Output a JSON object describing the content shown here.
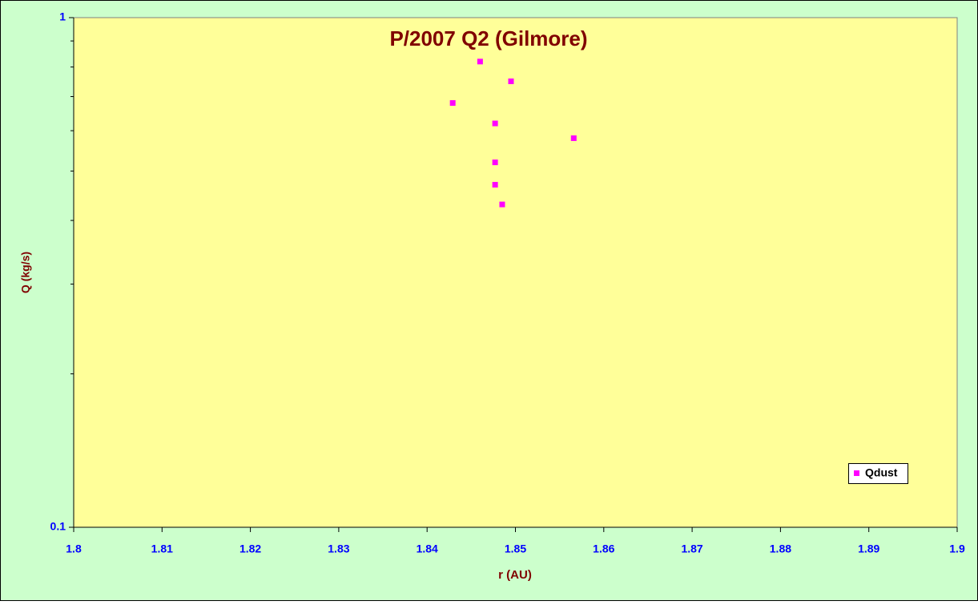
{
  "chart_data": {
    "type": "scatter",
    "title": "P/2007 Q2 (Gilmore)",
    "xlabel": "r (AU)",
    "ylabel": "Q (kg/s)",
    "series": [
      {
        "name": "Qdust",
        "color": "#ff00ff",
        "x": [
          1.846,
          1.8495,
          1.8429,
          1.8477,
          1.8566,
          1.8477,
          1.8477,
          1.8485
        ],
        "values": [
          0.82,
          0.75,
          0.68,
          0.62,
          0.58,
          0.52,
          0.47,
          0.43
        ]
      }
    ],
    "xlim": [
      1.8,
      1.9
    ],
    "xticks": [
      1.8,
      1.81,
      1.82,
      1.83,
      1.84,
      1.85,
      1.86,
      1.87,
      1.88,
      1.89,
      1.9
    ],
    "ylim": [
      0.1,
      1
    ],
    "yticks": [
      0.1,
      1
    ],
    "yminorticks": [
      0.2,
      0.3,
      0.4,
      0.5,
      0.6,
      0.7,
      0.8,
      0.9
    ],
    "ylog": true,
    "grid": false,
    "legend": "lower right"
  }
}
